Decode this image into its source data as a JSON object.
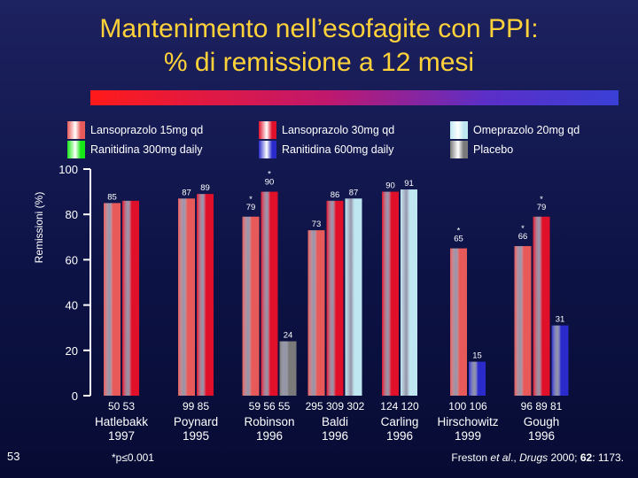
{
  "title": {
    "line1": "Mantenimento nell’esofagite con PPI:",
    "line2": "% di remissione a 12 mesi"
  },
  "colors": {
    "lanso15": "#e85a5a",
    "lanso30": "#e0102a",
    "omep20": "#bfe7f2",
    "ranit300": "#17e717",
    "ranit600": "#2b2bcc",
    "placebo": "#7a7a7a",
    "grid": "#ffffff"
  },
  "legend": [
    {
      "key": "lanso15",
      "label": "Lansoprazolo 15mg qd"
    },
    {
      "key": "lanso30",
      "label": "Lansoprazolo 30mg qd"
    },
    {
      "key": "omep20",
      "label": "Omeprazolo 20mg qd"
    },
    {
      "key": "ranit300",
      "label": "Ranitidina 300mg daily"
    },
    {
      "key": "ranit600",
      "label": "Ranitidina 600mg daily"
    },
    {
      "key": "placebo",
      "label": "Placebo"
    }
  ],
  "chart_data": {
    "type": "bar",
    "title": "% di remissione a 12 mesi",
    "ylabel": "Remissioni (%)",
    "ylim": [
      0,
      100
    ],
    "yticks": [
      "0",
      "20",
      "40",
      "60",
      "80",
      "100"
    ],
    "studies": [
      {
        "name": "Hatlebakk",
        "year": "1997",
        "n_text": "50  53",
        "bars": [
          {
            "series": "lanso15",
            "value": 85,
            "label": "85"
          },
          {
            "series": "lanso30",
            "value": 86,
            "label": ""
          }
        ]
      },
      {
        "name": "Poynard",
        "year": "1995",
        "n_text": "99  85",
        "bars": [
          {
            "series": "lanso15",
            "value": 87,
            "label": "87"
          },
          {
            "series": "lanso30",
            "value": 89,
            "label": "89"
          }
        ]
      },
      {
        "name": "Robinson",
        "year": "1996",
        "n_text": "59  56  55",
        "bars": [
          {
            "series": "lanso15",
            "value": 79,
            "label": "79",
            "star": "*"
          },
          {
            "series": "lanso30",
            "value": 90,
            "label": "90",
            "star": "*"
          },
          {
            "series": "placebo",
            "value": 24,
            "label": "24"
          }
        ]
      },
      {
        "name": "Baldi",
        "year": "1996",
        "n_text": "295 309 302",
        "bars": [
          {
            "series": "lanso15",
            "value": 73,
            "label": "73"
          },
          {
            "series": "lanso30",
            "value": 86,
            "label": "86"
          },
          {
            "series": "omep20",
            "value": 87,
            "label": "87"
          }
        ]
      },
      {
        "name": "Carling",
        "year": "1996",
        "n_text": "124 120",
        "bars": [
          {
            "series": "lanso30",
            "value": 90,
            "label": "90"
          },
          {
            "series": "omep20",
            "value": 91,
            "label": "91"
          }
        ]
      },
      {
        "name": "Hirschowitz",
        "year": "1999",
        "n_text": "100 106",
        "bars": [
          {
            "series": "lanso15",
            "value": 65,
            "label": "65",
            "star": "*"
          },
          {
            "series": "ranit600",
            "value": 15,
            "label": "15"
          }
        ]
      },
      {
        "name": "Gough",
        "year": "1996",
        "n_text": "96  89  81",
        "bars": [
          {
            "series": "lanso15",
            "value": 66,
            "label": "66",
            "star": "*"
          },
          {
            "series": "lanso30",
            "value": 79,
            "label": "79",
            "star": "*"
          },
          {
            "series": "ranit600",
            "value": 31,
            "label": "31"
          }
        ]
      }
    ]
  },
  "footer": {
    "slide_number": "53",
    "footnote": "*p≤0.001",
    "citation_prefix": "Freston ",
    "citation_etal": "et al",
    "citation_mid": "., ",
    "citation_journal": "Drugs",
    "citation_year": " 2000; ",
    "citation_vol": "62",
    "citation_pages": ": 1173."
  }
}
